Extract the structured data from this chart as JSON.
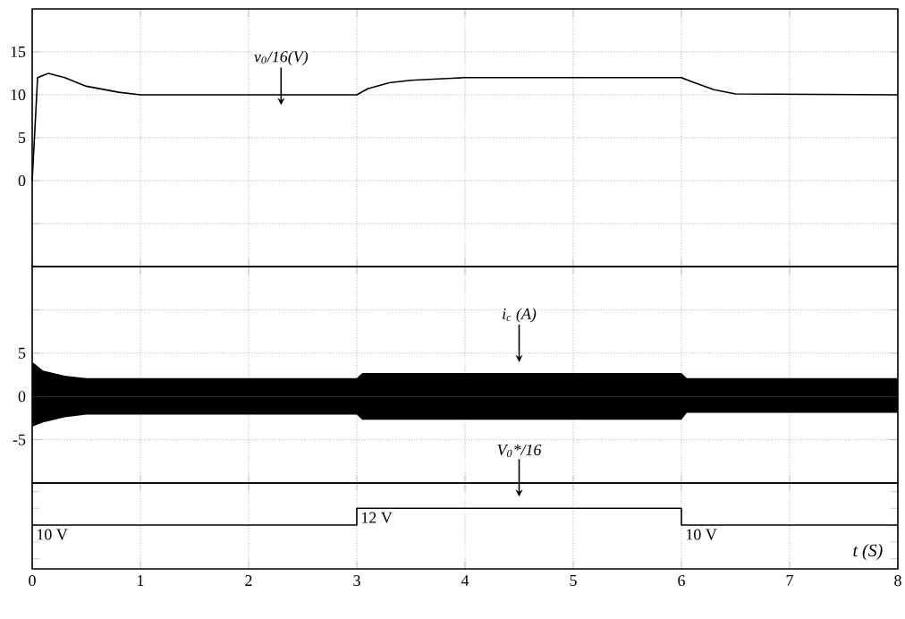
{
  "chart_data": [
    {
      "type": "line",
      "xlim": [
        0,
        8
      ],
      "xticks": [
        0,
        1,
        2,
        3,
        4,
        5,
        6,
        7,
        8
      ],
      "ylim": [
        -10,
        20
      ],
      "yticks": [
        {
          "value": -5,
          "label": null
        },
        0,
        5,
        10,
        15
      ],
      "grid": true,
      "tick_labels": "y",
      "marker": "none",
      "series": [
        {
          "color": "#000000",
          "x": [
            0,
            0.05,
            0.15,
            0.3,
            0.5,
            0.8,
            1,
            3,
            3.1,
            3.3,
            3.5,
            4,
            6,
            6.1,
            6.3,
            6.5,
            8
          ],
          "values": [
            0,
            12,
            12.5,
            12,
            11,
            10.3,
            10,
            10,
            10.7,
            11.4,
            11.7,
            12,
            12,
            11.5,
            10.6,
            10.1,
            10
          ]
        }
      ],
      "annotations": [
        "v$_{0}$/16(V)"
      ]
    },
    {
      "type": "line",
      "xlim": [
        0,
        8
      ],
      "xticks": [
        0,
        1,
        2,
        3,
        4,
        5,
        6,
        7,
        8
      ],
      "ylim": [
        -10,
        15
      ],
      "yticks": [
        -5,
        0,
        5,
        {
          "value": 10,
          "label": null
        }
      ],
      "grid": true,
      "tick_labels": "y",
      "marker": "none",
      "series": [
        {
          "type": "area",
          "color": "#000000",
          "x": [
            0,
            0.1,
            0.3,
            0.5,
            1,
            2,
            3,
            3.05,
            3.5,
            4,
            5,
            6,
            6.05,
            7,
            8
          ],
          "values": [
            4,
            3,
            2.4,
            2.1,
            2.1,
            2.1,
            2.1,
            2.7,
            2.7,
            2.7,
            2.7,
            2.7,
            2.1,
            2.1,
            2.1
          ]
        },
        {
          "type": "area",
          "color": "#000000",
          "x": [
            0,
            0.1,
            0.3,
            0.5,
            1,
            2,
            3,
            3.05,
            3.5,
            4,
            5,
            6,
            6.05,
            7,
            8
          ],
          "values": [
            -3.5,
            -3,
            -2.4,
            -2.1,
            -2.1,
            -2.1,
            -2.1,
            -2.7,
            -2.7,
            -2.7,
            -2.7,
            -2.7,
            -1.9,
            -1.9,
            -1.9
          ]
        }
      ],
      "annotations": [
        "i$_{c}$ (A)"
      ]
    },
    {
      "type": "step",
      "xlim": [
        0,
        8
      ],
      "xticks": [
        0,
        1,
        2,
        3,
        4,
        5,
        6,
        7,
        8
      ],
      "grid": "x",
      "tick_labels": "x",
      "marker": "none",
      "xlabel": "t (S)",
      "series": [
        {
          "color": "#000000",
          "x": [
            0,
            3,
            6,
            8
          ],
          "values": [
            10,
            12,
            10,
            10
          ],
          "value_labels": [
            "10 V",
            "12 V",
            "10 V",
            null
          ]
        }
      ],
      "annotations": [
        "V$_{0}$*/16"
      ]
    }
  ]
}
